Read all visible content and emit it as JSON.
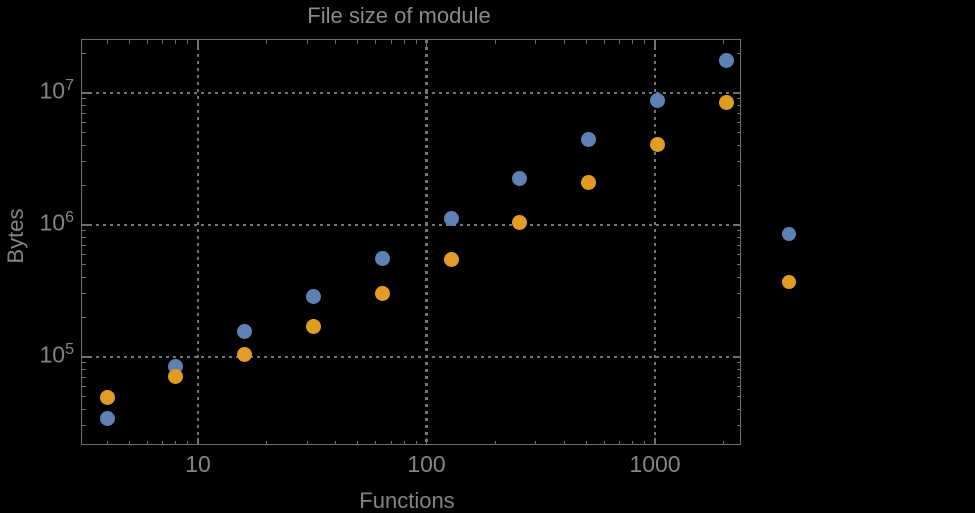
{
  "chart_data": {
    "type": "scatter",
    "title": "File size of module",
    "xlabel": "Functions",
    "ylabel": "Bytes",
    "x_scale": "log",
    "y_scale": "log",
    "xlim": [
      3.09,
      2366
    ],
    "ylim": [
      21700,
      25400000
    ],
    "grid": "major-dotted",
    "legend_position": "right-outside-markers-only",
    "x_ticks": [
      {
        "value": 10,
        "label": "10"
      },
      {
        "value": 100,
        "label": "100"
      },
      {
        "value": 1000,
        "label": "1000"
      }
    ],
    "y_ticks": [
      {
        "value": 100000,
        "base": "10",
        "exp": "5"
      },
      {
        "value": 1000000,
        "base": "10",
        "exp": "6"
      },
      {
        "value": 10000000,
        "base": "10",
        "exp": "7"
      }
    ],
    "series": [
      {
        "name": "series-1-blue",
        "color": "#5E81B5",
        "x": [
          4,
          8,
          16,
          32,
          64,
          128,
          256,
          512,
          1024,
          2048
        ],
        "y": [
          34000,
          84000,
          155000,
          285000,
          560000,
          1110000,
          2230000,
          4400000,
          8700000,
          17500000
        ]
      },
      {
        "name": "series-2-orange",
        "color": "#E19C24",
        "x": [
          4,
          8,
          16,
          32,
          64,
          128,
          256,
          512,
          1024,
          2048
        ],
        "y": [
          49000,
          70500,
          105000,
          169000,
          300000,
          550000,
          1050000,
          2080000,
          4100000,
          8400000
        ]
      }
    ],
    "legend_markers": [
      {
        "series": "series-1-blue",
        "color": "#5E81B5"
      },
      {
        "series": "series-2-orange",
        "color": "#E19C24"
      }
    ]
  },
  "colors": {
    "background": "#000000",
    "frame": "#707070",
    "grid": "#757575",
    "text": "#848484",
    "title": "#8A8A8A"
  }
}
